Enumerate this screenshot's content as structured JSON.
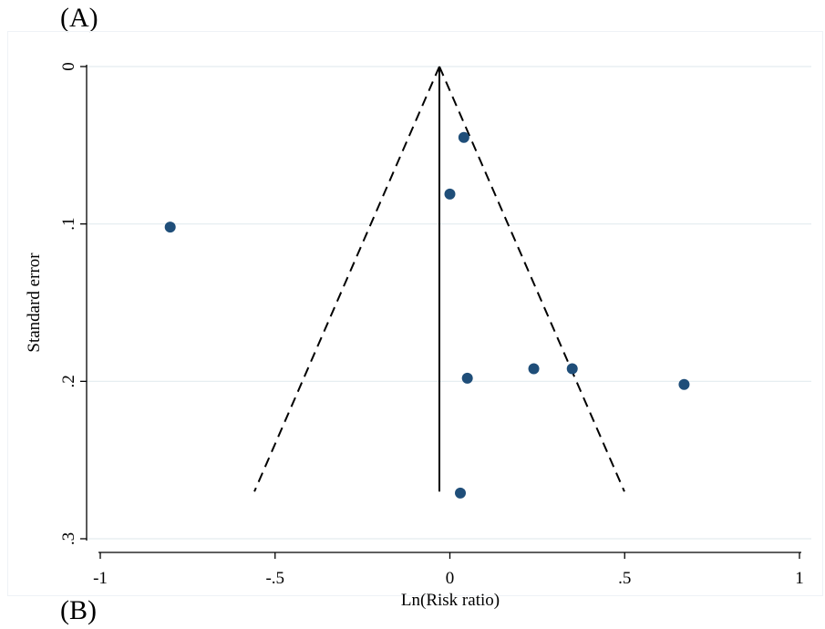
{
  "panels": {
    "top_label": "(A)",
    "bottom_label": "(B)"
  },
  "chart_data": {
    "type": "scatter",
    "title": "",
    "xlabel": "Ln(Risk ratio)",
    "ylabel": "Standard error",
    "xlim": [
      -1,
      1
    ],
    "ylim": [
      0,
      0.3
    ],
    "y_reversed": true,
    "x_ticks": [
      -1,
      -0.5,
      0,
      0.5,
      1
    ],
    "x_tick_labels": [
      "-1",
      "-.5",
      "0",
      ".5",
      "1"
    ],
    "y_ticks": [
      0,
      0.1,
      0.2,
      0.3
    ],
    "y_tick_labels": [
      "0",
      ".1",
      ".2",
      ".3"
    ],
    "grid": "horizontal",
    "pooled_estimate": -0.03,
    "funnel_max_se": 0.27,
    "points": [
      {
        "x": 0.04,
        "y": 0.045
      },
      {
        "x": 0.0,
        "y": 0.081
      },
      {
        "x": -0.8,
        "y": 0.102
      },
      {
        "x": 0.05,
        "y": 0.198
      },
      {
        "x": 0.24,
        "y": 0.192
      },
      {
        "x": 0.35,
        "y": 0.192
      },
      {
        "x": 0.67,
        "y": 0.202
      },
      {
        "x": 0.03,
        "y": 0.271
      }
    ],
    "colors": {
      "point": "#1f4e79",
      "grid": "#e3ecef",
      "axis": "#000000"
    }
  }
}
